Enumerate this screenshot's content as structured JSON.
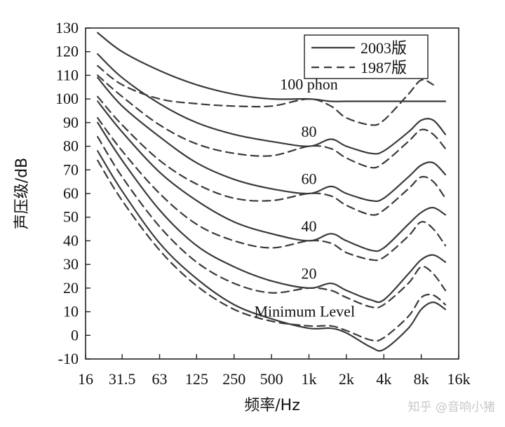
{
  "chart_data": {
    "type": "line",
    "xlabel": "频率/Hz",
    "ylabel": "声压级/dB",
    "x_scale": "log",
    "xlim": [
      16,
      16000
    ],
    "ylim": [
      -10,
      130
    ],
    "x_ticks": [
      {
        "value": 16,
        "label": "16"
      },
      {
        "value": 31.5,
        "label": "31.5"
      },
      {
        "value": 63,
        "label": "63"
      },
      {
        "value": 125,
        "label": "125"
      },
      {
        "value": 250,
        "label": "250"
      },
      {
        "value": 500,
        "label": "500"
      },
      {
        "value": 1000,
        "label": "1k"
      },
      {
        "value": 2000,
        "label": "2k"
      },
      {
        "value": 4000,
        "label": "4k"
      },
      {
        "value": 8000,
        "label": "8k"
      },
      {
        "value": 16000,
        "label": "16k"
      }
    ],
    "y_ticks": [
      -10,
      0,
      10,
      20,
      30,
      40,
      50,
      60,
      70,
      80,
      90,
      100,
      110,
      120,
      130
    ],
    "grid": false,
    "legend": {
      "position": "top-right",
      "entries": [
        {
          "label": "2003版",
          "style": "solid"
        },
        {
          "label": "1987版",
          "style": "dashed"
        }
      ]
    },
    "annotations": [
      {
        "text": "100 phon",
        "x": 1000,
        "y": 104
      },
      {
        "text": "80",
        "x": 1000,
        "y": 84
      },
      {
        "text": "60",
        "x": 1000,
        "y": 64
      },
      {
        "text": "40",
        "x": 1000,
        "y": 44
      },
      {
        "text": "20",
        "x": 1000,
        "y": 24
      },
      {
        "text": "Minimum Level",
        "x": 2000,
        "y": 8
      }
    ],
    "series": [
      {
        "style": "solid",
        "x": [
          20,
          31.5,
          63,
          125,
          250,
          500,
          1000,
          1500,
          2000,
          3150,
          4000,
          6300,
          8000,
          10000,
          12500
        ],
        "y": [
          128,
          120,
          112,
          106,
          102,
          100,
          100,
          99,
          99,
          99,
          99,
          99,
          99,
          99,
          99
        ]
      },
      {
        "style": "solid",
        "x": [
          20,
          31.5,
          63,
          125,
          250,
          500,
          1000,
          1500,
          2000,
          3150,
          4000,
          6300,
          8000,
          10000,
          12500
        ],
        "y": [
          119,
          109,
          98,
          90,
          85,
          82,
          80,
          83,
          80,
          77,
          78,
          86,
          91,
          91,
          85
        ]
      },
      {
        "style": "solid",
        "x": [
          20,
          31.5,
          63,
          125,
          250,
          500,
          1000,
          1500,
          2000,
          3150,
          4000,
          6300,
          8000,
          10000,
          12500
        ],
        "y": [
          109,
          97,
          84,
          73,
          66,
          62,
          60,
          63,
          60,
          57,
          58,
          67,
          72,
          73,
          68
        ]
      },
      {
        "style": "solid",
        "x": [
          20,
          31.5,
          63,
          125,
          250,
          500,
          1000,
          1500,
          2000,
          3150,
          4000,
          6300,
          8000,
          10000,
          12500
        ],
        "y": [
          99,
          86,
          69,
          57,
          48,
          43,
          40,
          43,
          40,
          36,
          37,
          47,
          52,
          54,
          51
        ]
      },
      {
        "style": "solid",
        "x": [
          20,
          31.5,
          63,
          125,
          250,
          500,
          1000,
          1500,
          2000,
          3150,
          4000,
          6300,
          8000,
          10000,
          12500
        ],
        "y": [
          90,
          74,
          53,
          38,
          29,
          23,
          20,
          22,
          19,
          15,
          15,
          26,
          32,
          34,
          31
        ]
      },
      {
        "style": "solid",
        "x": [
          20,
          31.5,
          63,
          125,
          250,
          500,
          1000,
          1500,
          2000,
          3150,
          4000,
          6300,
          8000,
          10000,
          12500
        ],
        "y": [
          78,
          61,
          39,
          24,
          13,
          7,
          3,
          3,
          1,
          -5,
          -6,
          3,
          11,
          14,
          11
        ]
      },
      {
        "style": "dashed",
        "x": [
          20,
          31.5,
          63,
          125,
          250,
          500,
          1000,
          1500,
          2000,
          3150,
          4000,
          6300,
          8000,
          10000
        ],
        "y": [
          114,
          106,
          100,
          98,
          97,
          97,
          100,
          97,
          92,
          89,
          91,
          102,
          108,
          106
        ]
      },
      {
        "style": "dashed",
        "x": [
          20,
          31.5,
          63,
          125,
          250,
          500,
          1000,
          1500,
          2000,
          3150,
          4000,
          6300,
          8000,
          10000,
          12500
        ],
        "y": [
          110,
          101,
          89,
          81,
          77,
          76,
          80,
          79,
          75,
          71,
          73,
          82,
          87,
          85,
          79
        ]
      },
      {
        "style": "dashed",
        "x": [
          20,
          31.5,
          63,
          125,
          250,
          500,
          1000,
          1500,
          2000,
          3150,
          4000,
          6300,
          8000,
          10000,
          12500
        ],
        "y": [
          101,
          89,
          74,
          64,
          58,
          57,
          60,
          59,
          55,
          51,
          53,
          62,
          67,
          65,
          58
        ]
      },
      {
        "style": "dashed",
        "x": [
          20,
          31.5,
          63,
          125,
          250,
          500,
          1000,
          1500,
          2000,
          3150,
          4000,
          6300,
          8000,
          10000,
          12500
        ],
        "y": [
          92,
          78,
          60,
          47,
          40,
          37,
          40,
          39,
          35,
          32,
          33,
          42,
          48,
          45,
          38
        ]
      },
      {
        "style": "dashed",
        "x": [
          20,
          31.5,
          63,
          125,
          250,
          500,
          1000,
          1500,
          2000,
          3150,
          4000,
          6300,
          8000,
          10000,
          12500
        ],
        "y": [
          84,
          67,
          46,
          31,
          22,
          18,
          20,
          19,
          16,
          12,
          13,
          22,
          29,
          26,
          19
        ]
      },
      {
        "style": "dashed",
        "x": [
          20,
          31.5,
          63,
          125,
          250,
          500,
          1000,
          1500,
          2000,
          3150,
          4000,
          6300,
          8000,
          10000,
          12500
        ],
        "y": [
          74,
          57,
          36,
          21,
          11,
          6,
          4,
          4,
          2,
          -2,
          -1,
          8,
          16,
          17,
          13
        ]
      }
    ]
  },
  "watermark": "知乎 @音响小猪"
}
